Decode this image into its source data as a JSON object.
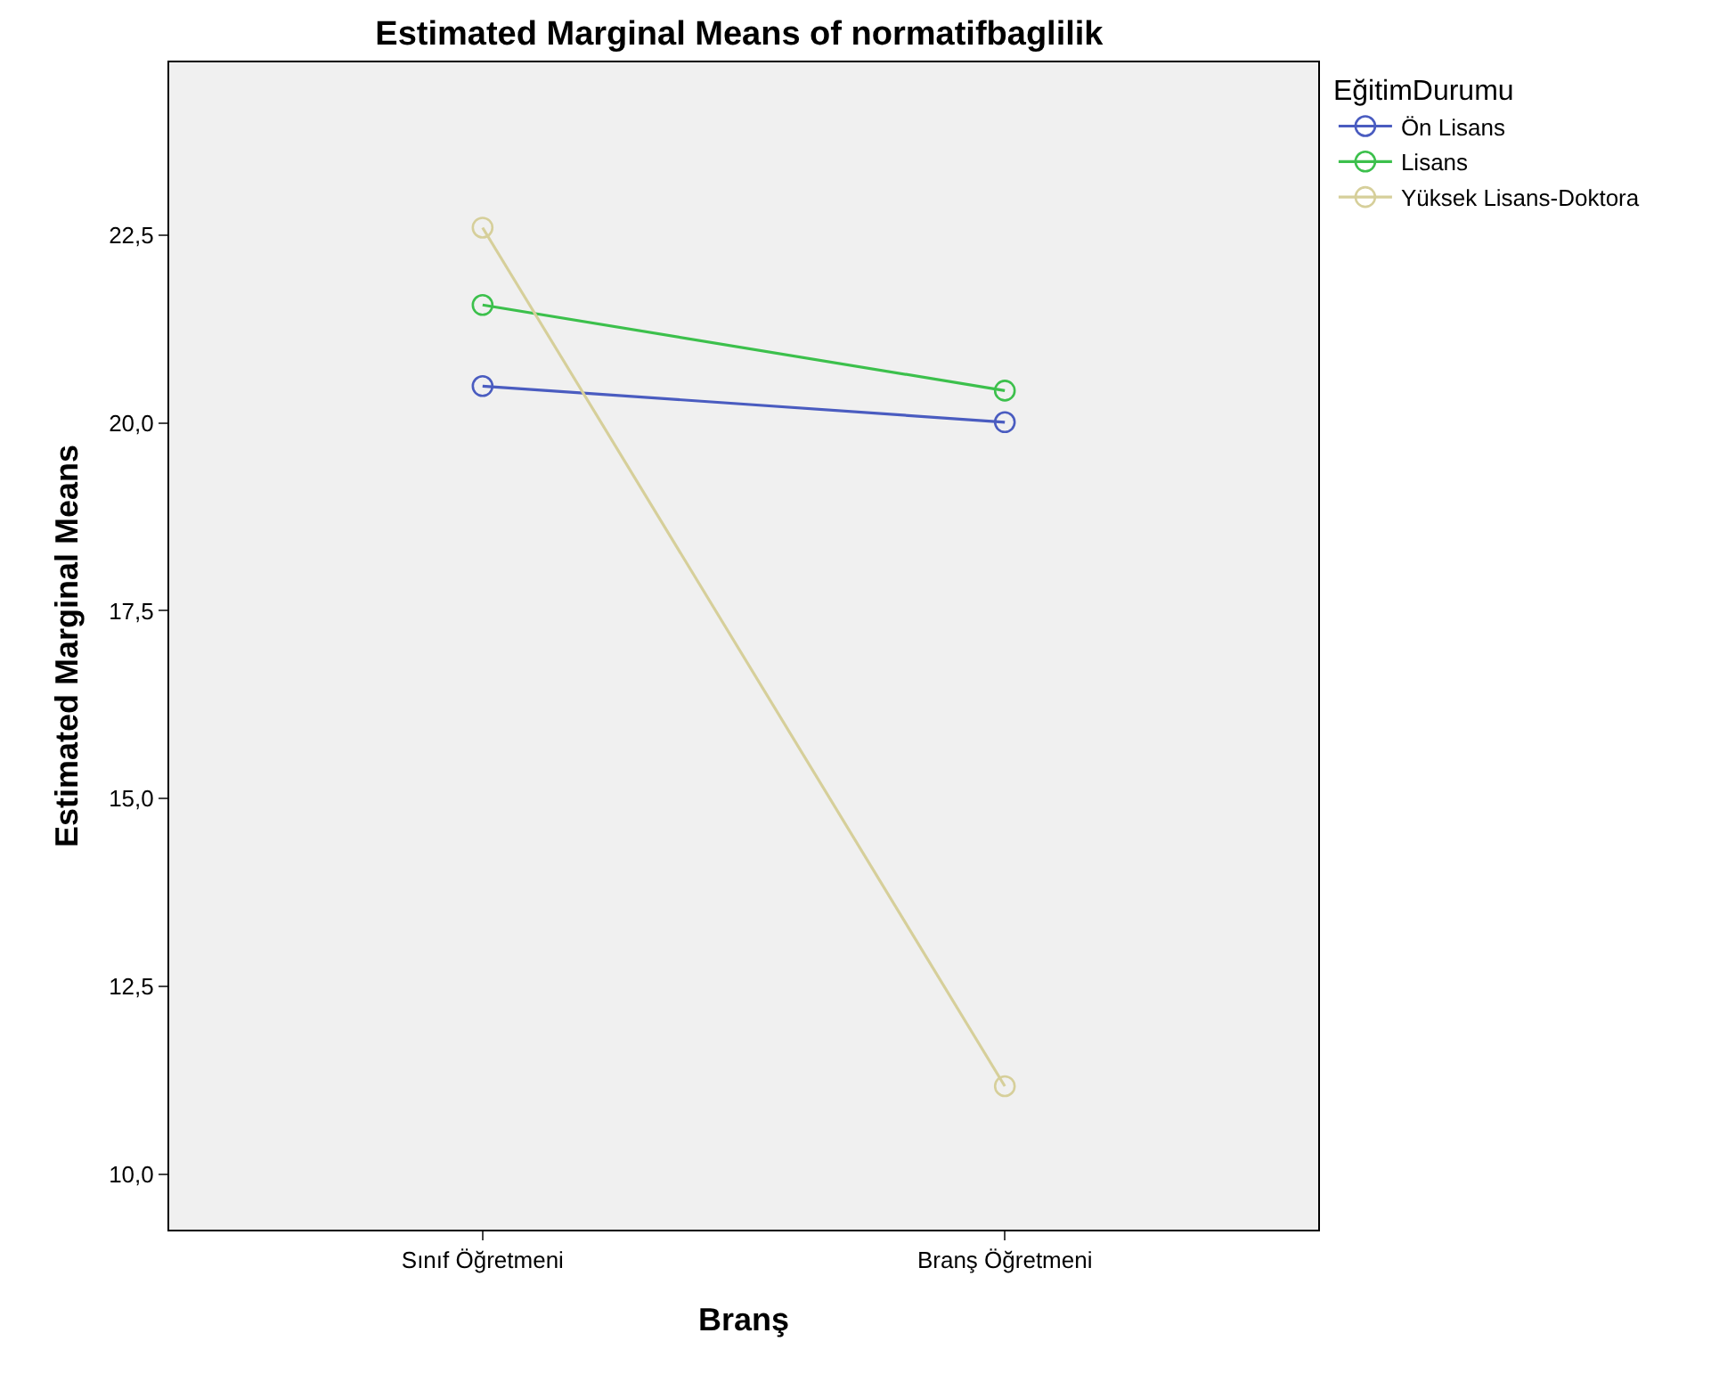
{
  "chart_data": {
    "type": "line",
    "title": "Estimated Marginal Means of normatifbaglilik",
    "xlabel": "Branş",
    "ylabel": "Estimated Marginal Means",
    "legend_title": "EğitimDurumu",
    "categories": [
      "Sınıf Öğretmeni",
      "Branş Öğretmeni"
    ],
    "series": [
      {
        "name": "Ön Lisans",
        "color": "#4a5cc0",
        "values": [
          20.49,
          20.01
        ]
      },
      {
        "name": "Lisans",
        "color": "#3cc04c",
        "values": [
          21.57,
          20.43
        ]
      },
      {
        "name": "Yüksek Lisans-Doktora",
        "color": "#d6cf9a",
        "values": [
          22.6,
          11.17
        ]
      }
    ],
    "ylim": [
      9.26,
      24.8
    ],
    "yticks": [
      {
        "value": 10,
        "label": "10,0"
      },
      {
        "value": 12.5,
        "label": "12,5"
      },
      {
        "value": 15,
        "label": "15,0"
      },
      {
        "value": 17.5,
        "label": "17,5"
      },
      {
        "value": 20,
        "label": "20,0"
      },
      {
        "value": 22.5,
        "label": "22,5"
      }
    ],
    "grid": false,
    "legend": "top right",
    "marker": "circle",
    "line_style": "solid"
  }
}
